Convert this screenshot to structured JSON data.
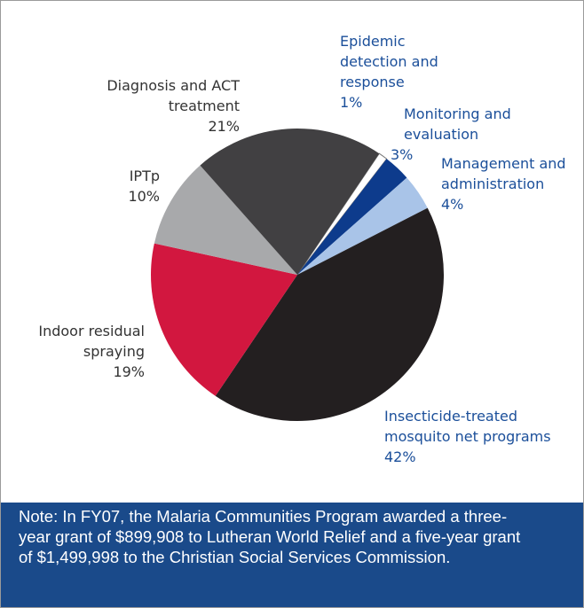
{
  "chart_data": {
    "type": "pie",
    "categories": [
      "Epidemic detection and response",
      "Monitoring and evaluation",
      "Management and administration",
      "Insecticide-treated mosquito net programs",
      "Indoor residual spraying",
      "IPTp",
      "Diagnosis and ACT treatment"
    ],
    "values": [
      1,
      3,
      4,
      42,
      19,
      10,
      21
    ],
    "value_labels": [
      "1%",
      "3%",
      "4%",
      "42%",
      "19%",
      "10%",
      "21%"
    ],
    "colors": [
      "#ffffff",
      "#0d3b8c",
      "#a9c4e8",
      "#231f20",
      "#d2173f",
      "#a8a9ab",
      "#414042"
    ]
  },
  "note": "Note: In FY07, the Malaria Communities Program awarded a three-year grant of $899,908 to Lutheran World Relief and a five-year grant of $1,499,998 to the Christian Social Services Commission."
}
